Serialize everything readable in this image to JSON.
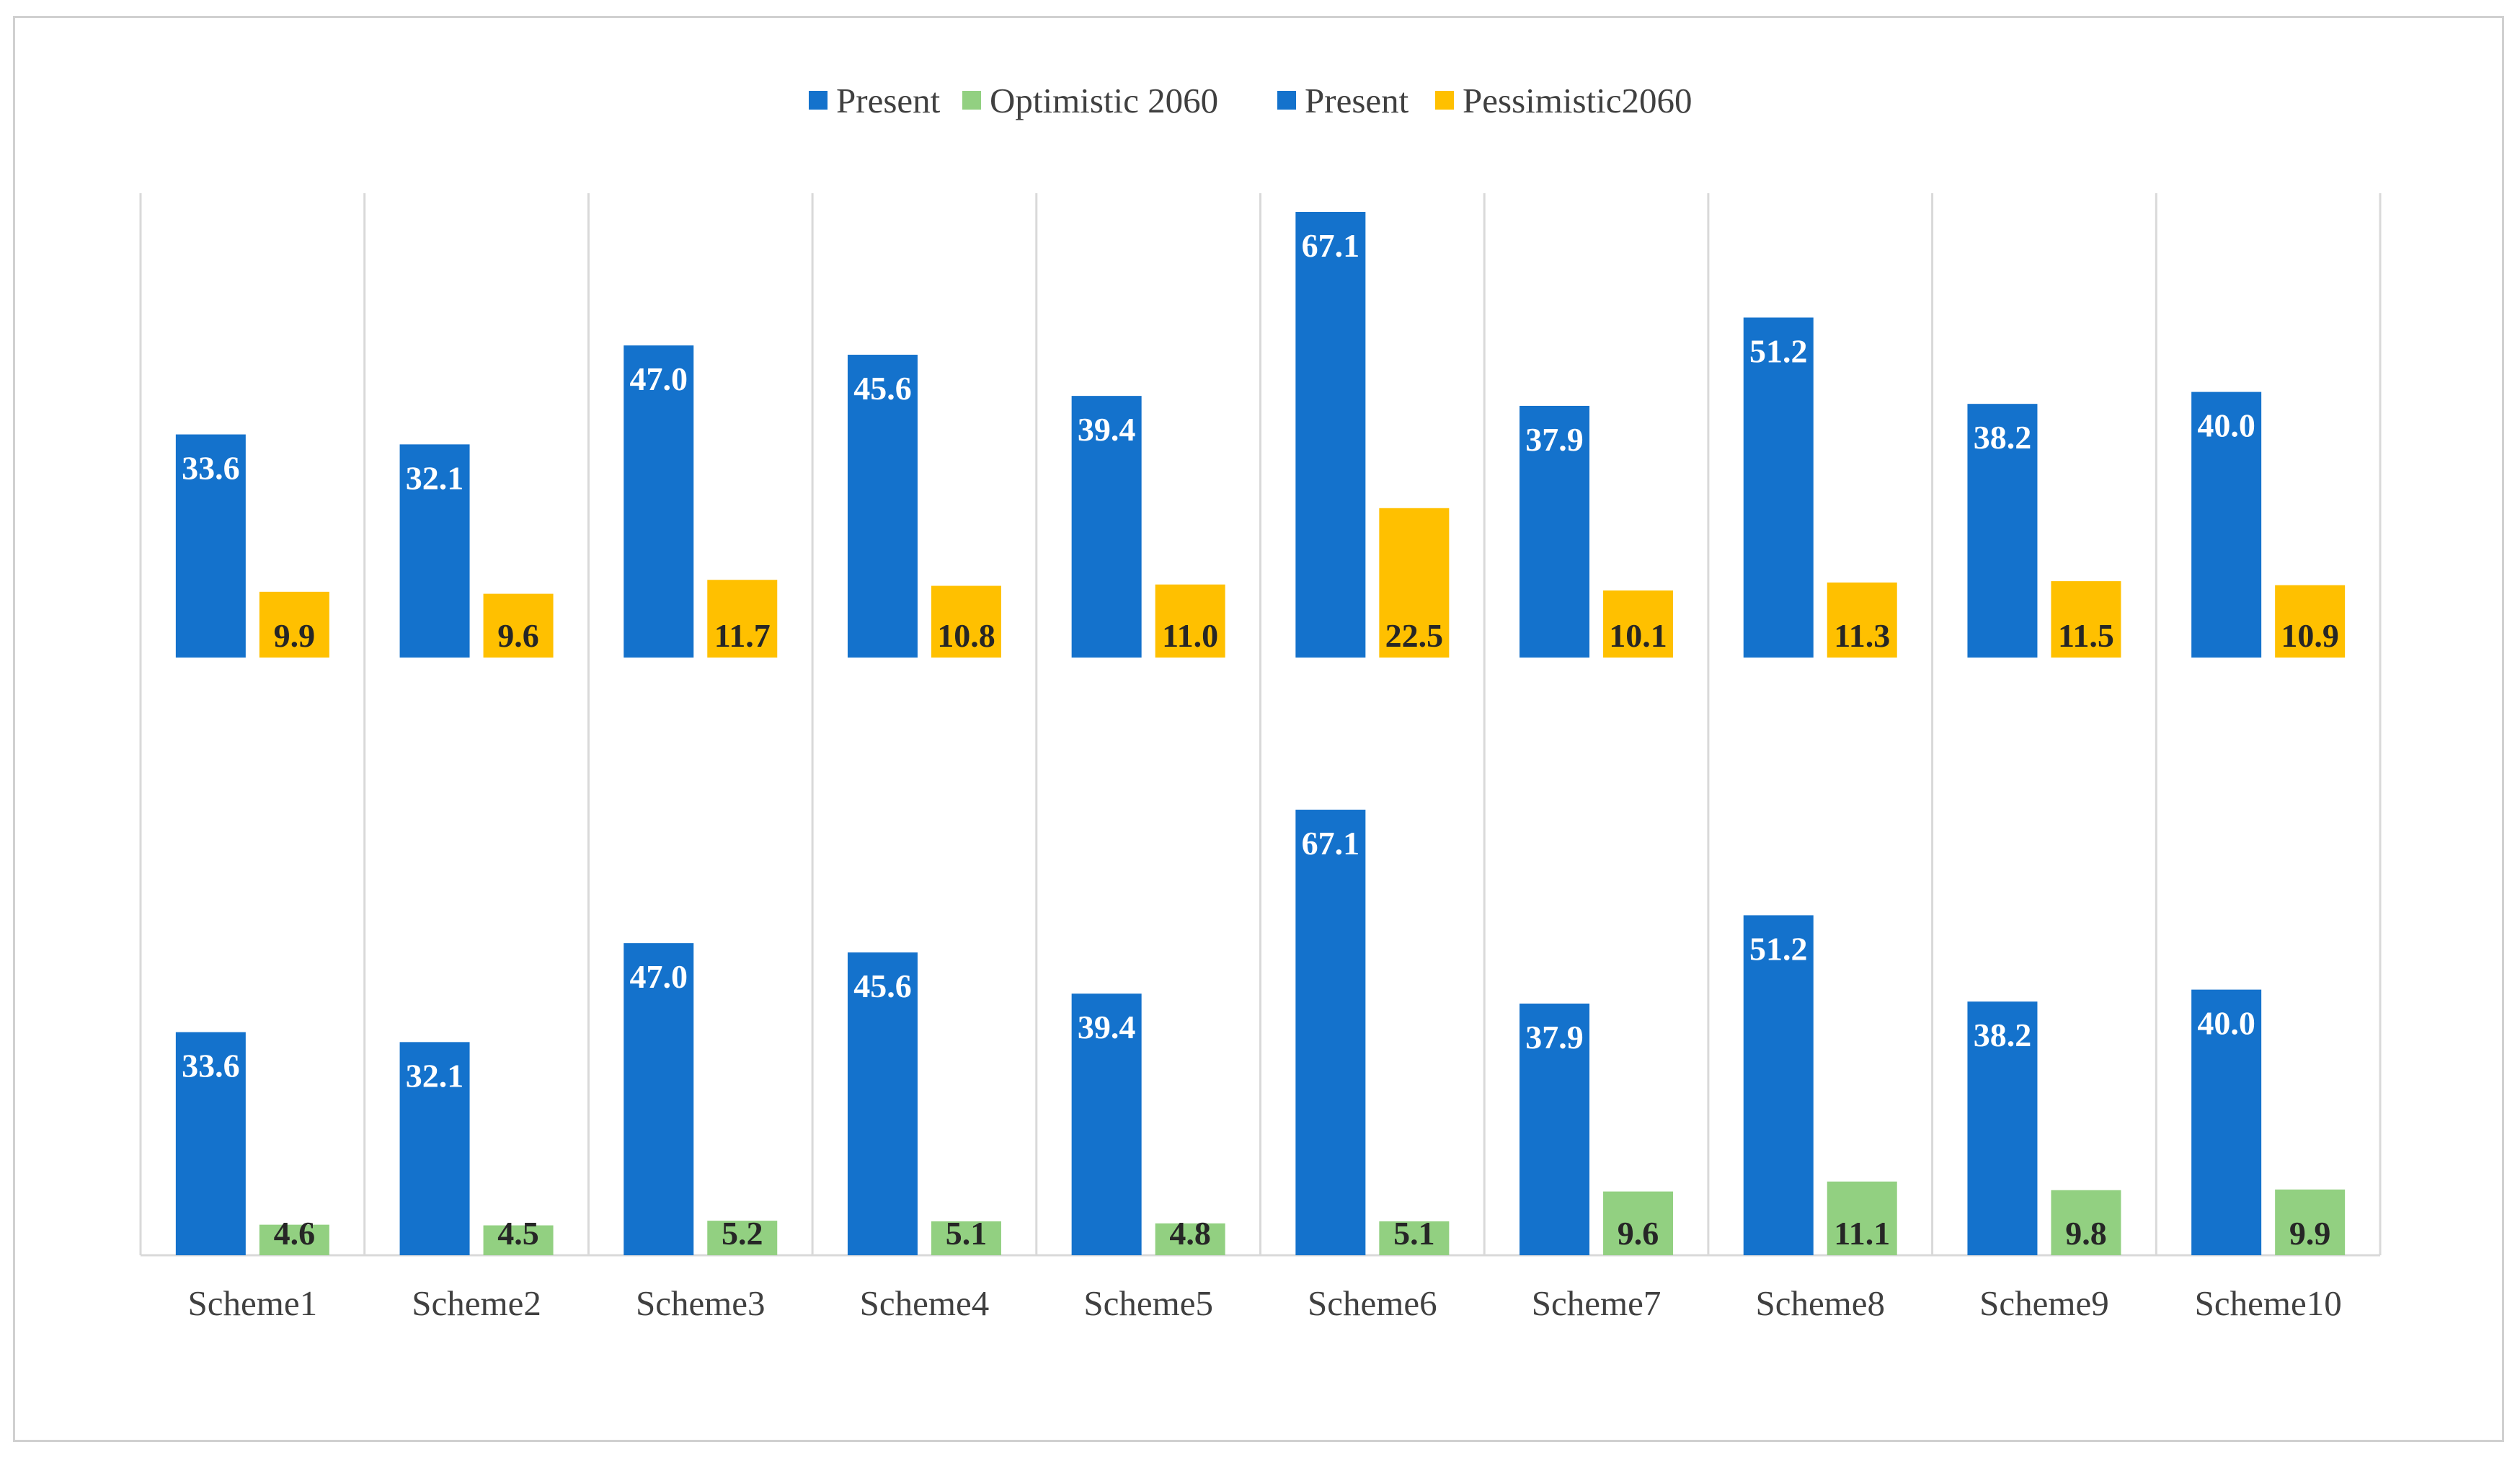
{
  "chart_data": {
    "type": "bar",
    "categories": [
      "Scheme1",
      "Scheme2",
      "Scheme3",
      "Scheme4",
      "Scheme5",
      "Scheme6",
      "Scheme7",
      "Scheme8",
      "Scheme9",
      "Scheme10"
    ],
    "legend": [
      {
        "name": "Present",
        "color": "#1472cc"
      },
      {
        "name": "Optimistic 2060",
        "color": "#92d081"
      },
      {
        "name": "Present",
        "color": "#1472cc"
      },
      {
        "name": "Pessimistic2060",
        "color": "#ffc000"
      }
    ],
    "legend_position": "top-center",
    "grid": "vertical category separators",
    "panels": [
      {
        "position": "upper",
        "series": [
          {
            "name": "Present",
            "color": "#1472cc",
            "values": [
              33.6,
              32.1,
              47.0,
              45.6,
              39.4,
              67.1,
              37.9,
              51.2,
              38.2,
              40.0
            ],
            "labels": [
              "33.6",
              "32.1",
              "47.0",
              "45.6",
              "39.4",
              "67.1",
              "37.9",
              "51.2",
              "38.2",
              "40.0"
            ]
          },
          {
            "name": "Pessimistic2060",
            "color": "#ffc000",
            "values": [
              9.9,
              9.6,
              11.7,
              10.8,
              11.0,
              22.5,
              10.1,
              11.3,
              11.5,
              10.9
            ],
            "labels": [
              "9.9",
              "9.6",
              "11.7",
              "10.8",
              "11.0",
              "22.5",
              "10.1",
              "11.3",
              "11.5",
              "10.9"
            ]
          }
        ]
      },
      {
        "position": "lower",
        "series": [
          {
            "name": "Present",
            "color": "#1472cc",
            "values": [
              33.6,
              32.1,
              47.0,
              45.6,
              39.4,
              67.1,
              37.9,
              51.2,
              38.2,
              40.0
            ],
            "labels": [
              "33.6",
              "32.1",
              "47.0",
              "45.6",
              "39.4",
              "67.1",
              "37.9",
              "51.2",
              "38.2",
              "40.0"
            ]
          },
          {
            "name": "Optimistic 2060",
            "color": "#92d081",
            "values": [
              4.6,
              4.5,
              5.2,
              5.1,
              4.8,
              5.1,
              9.6,
              11.1,
              9.8,
              9.9
            ],
            "labels": [
              "4.6",
              "4.5",
              "5.2",
              "5.1",
              "4.8",
              "5.1",
              "9.6",
              "11.1",
              "9.8",
              "9.9"
            ]
          }
        ]
      }
    ],
    "title": "",
    "xlabel": "",
    "ylabel": ""
  }
}
